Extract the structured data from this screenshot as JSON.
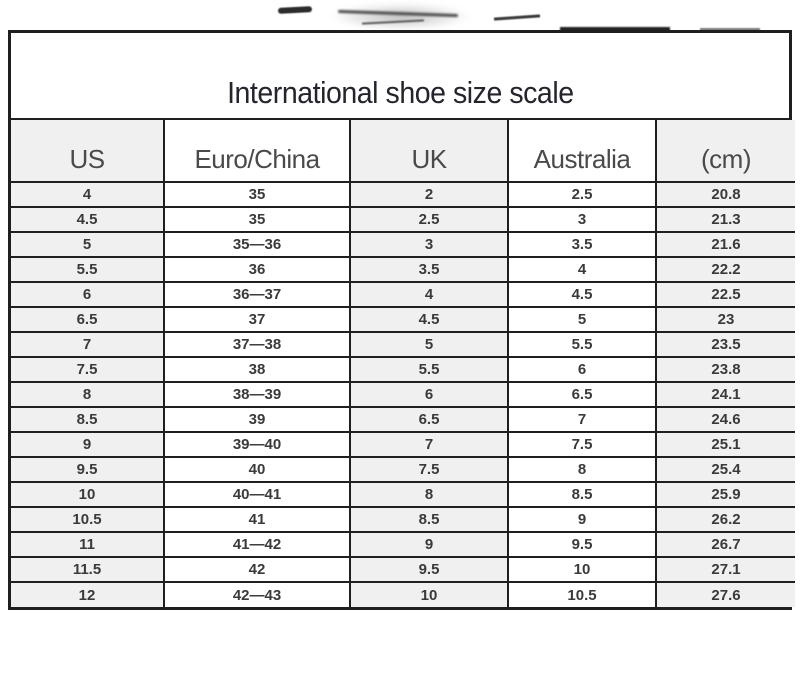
{
  "chart_data": {
    "type": "table",
    "title": "International shoe size scale",
    "columns": [
      "US",
      "Euro/China",
      "UK",
      "Australia",
      "(cm)"
    ],
    "rows": [
      [
        "4",
        "35",
        "2",
        "2.5",
        "20.8"
      ],
      [
        "4.5",
        "35",
        "2.5",
        "3",
        "21.3"
      ],
      [
        "5",
        "35—36",
        "3",
        "3.5",
        "21.6"
      ],
      [
        "5.5",
        "36",
        "3.5",
        "4",
        "22.2"
      ],
      [
        "6",
        "36—37",
        "4",
        "4.5",
        "22.5"
      ],
      [
        "6.5",
        "37",
        "4.5",
        "5",
        "23"
      ],
      [
        "7",
        "37—38",
        "5",
        "5.5",
        "23.5"
      ],
      [
        "7.5",
        "38",
        "5.5",
        "6",
        "23.8"
      ],
      [
        "8",
        "38—39",
        "6",
        "6.5",
        "24.1"
      ],
      [
        "8.5",
        "39",
        "6.5",
        "7",
        "24.6"
      ],
      [
        "9",
        "39—40",
        "7",
        "7.5",
        "25.1"
      ],
      [
        "9.5",
        "40",
        "7.5",
        "8",
        "25.4"
      ],
      [
        "10",
        "40—41",
        "8",
        "8.5",
        "25.9"
      ],
      [
        "10.5",
        "41",
        "8.5",
        "9",
        "26.2"
      ],
      [
        "11",
        "41—42",
        "9",
        "9.5",
        "26.7"
      ],
      [
        "11.5",
        "42",
        "9.5",
        "10",
        "27.1"
      ],
      [
        "12",
        "42—43",
        "10",
        "10.5",
        "27.6"
      ]
    ],
    "layout": {
      "striped_columns": [
        0,
        2,
        4
      ],
      "grid": "on"
    }
  },
  "colors": {
    "grid_line": "#1f1f1f",
    "column_stripe": "#f0f0f0",
    "title_text": "#24242c",
    "header_text": "#4a4a4a",
    "cell_text": "#3a3a3a"
  }
}
